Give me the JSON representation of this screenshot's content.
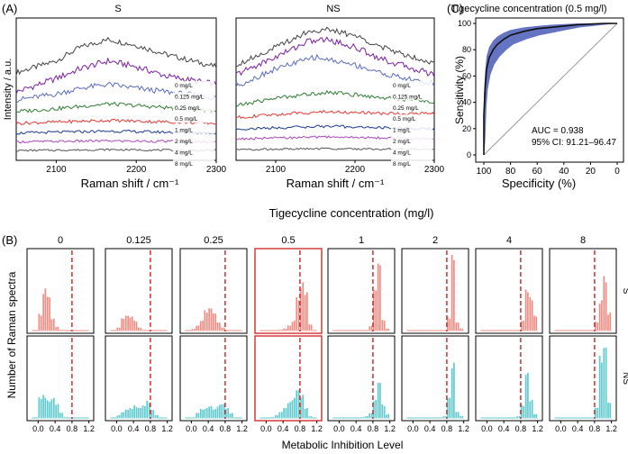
{
  "panel_labels": {
    "a": "(A)",
    "b": "(B)",
    "c": "(C)"
  },
  "chart_data": [
    {
      "id": "A-S",
      "type": "line",
      "title": "S",
      "xlabel": "Raman shift / cm⁻¹",
      "ylabel": "Intensity / a.u.",
      "xlim": [
        2050,
        2300
      ],
      "xticks": [
        "2100",
        "2200",
        "2300"
      ],
      "series": [
        {
          "name": "0 mg/L",
          "color": "#444444",
          "values": [
            [
              2050,
              7.0
            ],
            [
              2100,
              7.6
            ],
            [
              2130,
              8.3
            ],
            [
              2165,
              8.7
            ],
            [
              2200,
              8.4
            ],
            [
              2240,
              7.9
            ],
            [
              2300,
              7.3
            ]
          ]
        },
        {
          "name": "0.125 mg/L",
          "color": "#7b1fa2",
          "values": [
            [
              2050,
              6.0
            ],
            [
              2100,
              6.7
            ],
            [
              2130,
              7.2
            ],
            [
              2165,
              7.6
            ],
            [
              2200,
              7.3
            ],
            [
              2240,
              6.8
            ],
            [
              2300,
              6.4
            ]
          ]
        },
        {
          "name": "0.25 mg/L",
          "color": "#5c6bc0",
          "values": [
            [
              2050,
              5.6
            ],
            [
              2100,
              5.9
            ],
            [
              2130,
              6.2
            ],
            [
              2165,
              6.4
            ],
            [
              2200,
              6.2
            ],
            [
              2240,
              6.0
            ],
            [
              2300,
              5.7
            ]
          ]
        },
        {
          "name": "0.5 mg/L",
          "color": "#2e7d32",
          "values": [
            [
              2050,
              5.0
            ],
            [
              2100,
              5.15
            ],
            [
              2165,
              5.4
            ],
            [
              2240,
              5.2
            ],
            [
              2300,
              5.05
            ]
          ]
        },
        {
          "name": "1 mg/L",
          "color": "#e53935",
          "values": [
            [
              2050,
              4.4
            ],
            [
              2165,
              4.55
            ],
            [
              2300,
              4.4
            ]
          ]
        },
        {
          "name": "2 mg/L",
          "color": "#1a3a8f",
          "values": [
            [
              2050,
              3.9
            ],
            [
              2165,
              4.0
            ],
            [
              2300,
              3.9
            ]
          ]
        },
        {
          "name": "4 mg/L",
          "color": "#ab47bc",
          "values": [
            [
              2050,
              3.45
            ],
            [
              2165,
              3.5
            ],
            [
              2300,
              3.45
            ]
          ]
        },
        {
          "name": "8 mg/L",
          "color": "#555555",
          "values": [
            [
              2050,
              3.0
            ],
            [
              2165,
              3.05
            ],
            [
              2300,
              3.0
            ]
          ]
        }
      ]
    },
    {
      "id": "A-NS",
      "type": "line",
      "title": "NS",
      "xlabel": "Raman shift / cm⁻¹",
      "ylabel": "",
      "xlim": [
        2050,
        2300
      ],
      "xticks": [
        "2100",
        "2200",
        "2300"
      ],
      "series": [
        {
          "name": "0 mg/L",
          "color": "#444444",
          "values": [
            [
              2050,
              7.4
            ],
            [
              2100,
              8.3
            ],
            [
              2140,
              9.1
            ],
            [
              2165,
              9.2
            ],
            [
              2200,
              8.9
            ],
            [
              2240,
              8.2
            ],
            [
              2300,
              7.5
            ]
          ]
        },
        {
          "name": "0.125 mg/L",
          "color": "#7b1fa2",
          "values": [
            [
              2050,
              6.9
            ],
            [
              2100,
              7.8
            ],
            [
              2140,
              8.6
            ],
            [
              2165,
              8.7
            ],
            [
              2200,
              8.3
            ],
            [
              2240,
              7.6
            ],
            [
              2300,
              6.9
            ]
          ]
        },
        {
          "name": "0.25 mg/L",
          "color": "#5c6bc0",
          "values": [
            [
              2050,
              6.3
            ],
            [
              2100,
              7.2
            ],
            [
              2150,
              7.8
            ],
            [
              2200,
              7.4
            ],
            [
              2240,
              6.9
            ],
            [
              2300,
              6.4
            ]
          ]
        },
        {
          "name": "0.5 mg/L",
          "color": "#2e7d32",
          "values": [
            [
              2050,
              5.3
            ],
            [
              2100,
              5.7
            ],
            [
              2165,
              6.0
            ],
            [
              2240,
              5.7
            ],
            [
              2300,
              5.5
            ]
          ]
        },
        {
          "name": "1 mg/L",
          "color": "#e53935",
          "values": [
            [
              2050,
              4.7
            ],
            [
              2120,
              4.9
            ],
            [
              2165,
              5.0
            ],
            [
              2240,
              4.9
            ],
            [
              2300,
              4.9
            ]
          ]
        },
        {
          "name": "2 mg/L",
          "color": "#1a3a8f",
          "values": [
            [
              2050,
              4.1
            ],
            [
              2165,
              4.25
            ],
            [
              2300,
              4.1
            ]
          ]
        },
        {
          "name": "4 mg/L",
          "color": "#ab47bc",
          "values": [
            [
              2050,
              3.6
            ],
            [
              2165,
              3.7
            ],
            [
              2300,
              3.6
            ]
          ]
        },
        {
          "name": "8 mg/L",
          "color": "#555555",
          "values": [
            [
              2050,
              3.05
            ],
            [
              2165,
              3.1
            ],
            [
              2300,
              3.05
            ]
          ]
        }
      ]
    },
    {
      "id": "B",
      "type": "bar",
      "subtype": "histogram-grid",
      "title": "Tigecycline concentration (mg/l)",
      "xlabel": "Metabolic Inhibition Level",
      "ylabel": "Number of Raman spectra",
      "row_labels": [
        "S",
        "NS"
      ],
      "concentrations": [
        "0",
        "0.125",
        "0.25",
        "0.5",
        "1",
        "2",
        "4",
        "8"
      ],
      "highlighted_concentration": "0.5",
      "threshold": 0.8,
      "xlim": [
        -0.2,
        1.25
      ],
      "xticks": [
        "0.0",
        "0.4",
        "0.8",
        "1.2"
      ],
      "colors": {
        "S": "#f28b82",
        "NS": "#5ec9cf",
        "threshold": "#d32f2f",
        "highlight": "#d32f2f"
      },
      "bins": [
        -0.1,
        0.0,
        0.1,
        0.2,
        0.3,
        0.4,
        0.5,
        0.6,
        0.7,
        0.8,
        0.9,
        1.0,
        1.1
      ],
      "counts": {
        "S": [
          [
            0,
            15,
            42,
            33,
            12,
            4,
            1,
            0,
            0,
            0,
            0,
            0,
            0
          ],
          [
            0,
            3,
            12,
            15,
            14,
            9,
            3,
            1,
            0,
            0,
            0,
            0,
            0
          ],
          [
            0,
            2,
            5,
            10,
            18,
            22,
            17,
            8,
            3,
            0,
            0,
            0,
            0
          ],
          [
            0,
            0,
            0,
            0,
            1,
            2,
            5,
            10,
            30,
            48,
            38,
            6,
            0
          ],
          [
            0,
            0,
            0,
            0,
            0,
            0,
            0,
            0,
            5,
            40,
            65,
            10,
            2
          ],
          [
            0,
            0,
            0,
            0,
            0,
            0,
            0,
            0,
            0,
            12,
            70,
            8,
            2
          ],
          [
            0,
            0,
            0,
            0,
            0,
            0,
            0,
            0,
            0,
            10,
            38,
            30,
            14
          ],
          [
            0,
            0,
            0,
            0,
            0,
            0,
            0,
            0,
            0,
            8,
            30,
            48,
            18
          ]
        ],
        "NS": [
          [
            0,
            19,
            20,
            16,
            20,
            14,
            5,
            1,
            0,
            0,
            0,
            0,
            0
          ],
          [
            0,
            3,
            6,
            8,
            9,
            11,
            10,
            12,
            15,
            8,
            3,
            0,
            0
          ],
          [
            0,
            1,
            5,
            8,
            10,
            12,
            9,
            13,
            14,
            10,
            5,
            0,
            0
          ],
          [
            0,
            0,
            1,
            3,
            6,
            10,
            16,
            20,
            28,
            23,
            10,
            2,
            0
          ],
          [
            0,
            0,
            0,
            0,
            0,
            0,
            1,
            2,
            5,
            18,
            35,
            12,
            4
          ],
          [
            0,
            0,
            0,
            0,
            0,
            0,
            0,
            0,
            2,
            20,
            55,
            6,
            2
          ],
          [
            0,
            0,
            0,
            0,
            0,
            0,
            0,
            0,
            2,
            12,
            45,
            18,
            4
          ],
          [
            0,
            0,
            0,
            0,
            0,
            0,
            0,
            0,
            0,
            10,
            55,
            70,
            15
          ]
        ]
      }
    },
    {
      "id": "C",
      "type": "line",
      "subtype": "roc",
      "title": "Tigecycline concentration (0.5 mg/l)",
      "xlabel": "Specificity (%)",
      "ylabel": "Sensitivity (%)",
      "xlim": [
        100,
        0
      ],
      "ylim": [
        0,
        100
      ],
      "xticks": [
        "100",
        "80",
        "60",
        "40",
        "20",
        "0"
      ],
      "yticks": [
        "0",
        "20",
        "40",
        "60",
        "80",
        "100"
      ],
      "auc_text": "AUC = 0.938",
      "ci_text": "95% CI: 91.21–96.47",
      "colors": {
        "curve": "#111111",
        "band": "#4a5bb8",
        "diagonal": "#999999"
      },
      "curve": [
        [
          100,
          0
        ],
        [
          100,
          30
        ],
        [
          99,
          52
        ],
        [
          98,
          65
        ],
        [
          96,
          74
        ],
        [
          93,
          80
        ],
        [
          90,
          84
        ],
        [
          85,
          88
        ],
        [
          80,
          91
        ],
        [
          70,
          94
        ],
        [
          60,
          96
        ],
        [
          50,
          97
        ],
        [
          40,
          98
        ],
        [
          30,
          99
        ],
        [
          20,
          99.5
        ],
        [
          10,
          100
        ],
        [
          0,
          100
        ]
      ],
      "ci_upper": [
        [
          100,
          0
        ],
        [
          100,
          45
        ],
        [
          99,
          64
        ],
        [
          98,
          75
        ],
        [
          96,
          82
        ],
        [
          93,
          87
        ],
        [
          90,
          90
        ],
        [
          85,
          93
        ],
        [
          80,
          95
        ],
        [
          70,
          97
        ],
        [
          60,
          98
        ],
        [
          50,
          99
        ],
        [
          40,
          99.5
        ],
        [
          30,
          100
        ],
        [
          20,
          100
        ],
        [
          10,
          100
        ],
        [
          0,
          100
        ]
      ],
      "ci_lower": [
        [
          100,
          0
        ],
        [
          99,
          10
        ],
        [
          98,
          38
        ],
        [
          97,
          50
        ],
        [
          95,
          61
        ],
        [
          92,
          69
        ],
        [
          88,
          75
        ],
        [
          83,
          80
        ],
        [
          78,
          84
        ],
        [
          68,
          88
        ],
        [
          58,
          91
        ],
        [
          48,
          93
        ],
        [
          38,
          95
        ],
        [
          28,
          97
        ],
        [
          18,
          98
        ],
        [
          8,
          99.2
        ],
        [
          0,
          100
        ]
      ]
    }
  ]
}
